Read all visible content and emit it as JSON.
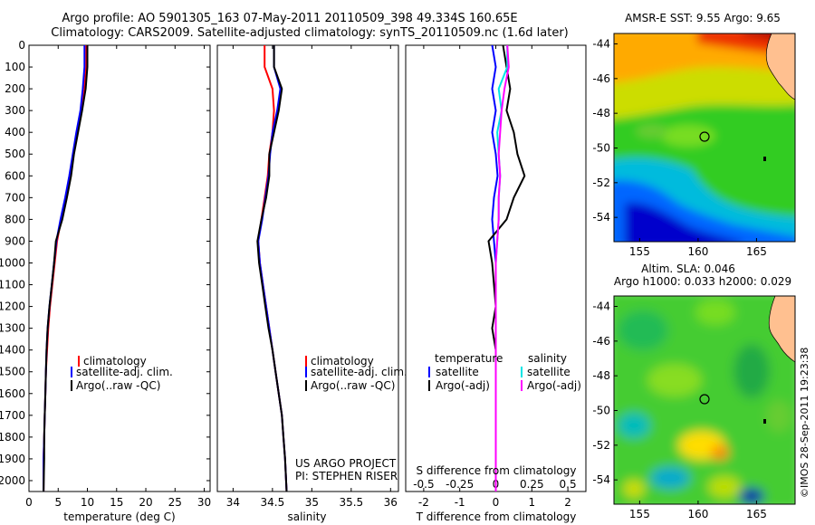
{
  "title_line1": "Argo profile: AO 5901305_163 07-May-2011 20110509_398 49.334S 160.65E",
  "title_line2": "Climatology: CARS2009. Satellite-adjusted climatology: synTS_20110509.nc (1.6d later)",
  "depth_ticks": [
    0,
    100,
    200,
    300,
    400,
    500,
    600,
    700,
    800,
    900,
    1000,
    1100,
    1200,
    1300,
    1400,
    1500,
    1600,
    1700,
    1800,
    1900,
    2000
  ],
  "panels": {
    "temperature": {
      "xlabel": "temperature (deg C)",
      "xticks": [
        0,
        5,
        10,
        15,
        20,
        25,
        30
      ],
      "legend": [
        "climatology",
        "satellite-adj. clim.",
        "Argo(..raw -QC)"
      ]
    },
    "salinity": {
      "xlabel": "salinity",
      "xticks": [
        "34",
        "34.5",
        "35",
        "35.5",
        "36"
      ],
      "legend": [
        "climatology",
        "satellite-adj. clim.",
        "Argo(..raw -QC)"
      ],
      "note1": "US ARGO PROJECT",
      "note2": "PI: STEPHEN RISER"
    },
    "difference": {
      "xlabel_bottom": "T difference from climatology",
      "xlabel_top": "S difference from climatology",
      "xticks_T": [
        "-2",
        "-1",
        "0",
        "1",
        "2"
      ],
      "xticks_S": [
        "-0.5",
        "-0.25",
        "0",
        "0.25",
        "0.5"
      ],
      "legend_t_title": "temperature",
      "legend_s_title": "salinity",
      "legend_t": [
        "satellite",
        "Argo(-adj)"
      ],
      "legend_s": [
        "satellite",
        "Argo(-adj)"
      ]
    }
  },
  "maps": {
    "sst_title": "AMSR-E SST: 9.55  Argo: 9.65",
    "sla_title1": "Altim. SLA: 0.046",
    "sla_title2": "Argo h1000: 0.033 h2000: 0.029",
    "lat_ticks": [
      "-44",
      "-46",
      "-48",
      "-50",
      "-52",
      "-54"
    ],
    "lon_ticks": [
      "155",
      "160",
      "165"
    ]
  },
  "watermark": "©IMOS 28-Sep-2011 19:23:38",
  "colors": {
    "climatology": "#ff0000",
    "satellite": "#0000ff",
    "argo": "#000000",
    "sat_s": "#00e5e5",
    "argo_s": "#ff00ff"
  },
  "chart_data": [
    {
      "type": "line",
      "xlabel": "temperature (deg C)",
      "ylabel": "",
      "xlim": [
        0,
        31
      ],
      "ylim": [
        2050,
        0
      ],
      "y_axis": "depth",
      "series": [
        {
          "name": "climatology",
          "x": [
            9.8,
            9.8,
            9.5,
            9.0,
            8.2,
            7.6,
            7.0,
            6.3,
            5.5,
            4.8,
            4.4,
            4.0,
            3.6,
            3.3,
            3.1,
            2.9,
            2.8,
            2.7,
            2.6,
            2.5,
            2.5
          ],
          "y": [
            0,
            100,
            200,
            300,
            400,
            500,
            600,
            700,
            800,
            900,
            1000,
            1100,
            1200,
            1300,
            1400,
            1500,
            1600,
            1700,
            1800,
            1900,
            2050
          ]
        },
        {
          "name": "satellite-adj. clim.",
          "x": [
            9.5,
            9.5,
            9.2,
            8.8,
            8.1,
            7.5,
            6.9,
            6.2,
            5.4,
            4.7,
            4.3,
            3.9,
            3.5,
            3.2,
            3.0,
            2.9,
            2.8,
            2.7,
            2.6,
            2.5,
            2.5
          ],
          "y": [
            0,
            100,
            200,
            300,
            400,
            500,
            600,
            700,
            800,
            900,
            1000,
            1100,
            1200,
            1300,
            1400,
            1500,
            1600,
            1700,
            1800,
            1900,
            2050
          ]
        },
        {
          "name": "Argo(..raw -QC)",
          "x": [
            10.0,
            10.0,
            9.7,
            9.1,
            8.4,
            7.7,
            7.2,
            6.5,
            5.7,
            4.6,
            4.3,
            3.9,
            3.5,
            3.2,
            3.0,
            2.9,
            2.8,
            2.7,
            2.6,
            2.6,
            2.5
          ],
          "y": [
            0,
            100,
            200,
            300,
            400,
            500,
            600,
            700,
            800,
            900,
            1000,
            1100,
            1200,
            1300,
            1400,
            1500,
            1600,
            1700,
            1800,
            1900,
            2050
          ]
        }
      ]
    },
    {
      "type": "line",
      "xlabel": "salinity",
      "ylabel": "",
      "xlim": [
        33.8,
        36.1
      ],
      "ylim": [
        2050,
        0
      ],
      "y_axis": "depth",
      "series": [
        {
          "name": "climatology",
          "x": [
            34.4,
            34.4,
            34.5,
            34.52,
            34.5,
            34.46,
            34.44,
            34.4,
            34.36,
            34.32,
            34.34,
            34.38,
            34.42,
            34.46,
            34.5,
            34.54,
            34.58,
            34.62,
            34.64,
            34.66,
            34.68
          ],
          "y": [
            0,
            100,
            200,
            300,
            400,
            500,
            600,
            700,
            800,
            900,
            1000,
            1100,
            1200,
            1300,
            1400,
            1500,
            1600,
            1700,
            1800,
            1900,
            2050
          ]
        },
        {
          "name": "satellite-adj. clim.",
          "x": [
            34.52,
            34.52,
            34.6,
            34.56,
            34.5,
            34.47,
            34.45,
            34.41,
            34.37,
            34.32,
            34.34,
            34.38,
            34.42,
            34.46,
            34.5,
            34.54,
            34.58,
            34.62,
            34.64,
            34.66,
            34.68
          ],
          "y": [
            0,
            100,
            200,
            300,
            400,
            500,
            600,
            700,
            800,
            900,
            1000,
            1100,
            1200,
            1300,
            1400,
            1500,
            1600,
            1700,
            1800,
            1900,
            2050
          ]
        },
        {
          "name": "Argo(..raw -QC)",
          "x": [
            34.52,
            34.52,
            34.62,
            34.58,
            34.52,
            34.46,
            34.46,
            34.42,
            34.36,
            34.31,
            34.33,
            34.37,
            34.41,
            34.45,
            34.5,
            34.54,
            34.58,
            34.62,
            34.64,
            34.66,
            34.68
          ],
          "y": [
            0,
            100,
            200,
            300,
            400,
            500,
            600,
            700,
            800,
            900,
            1000,
            1100,
            1200,
            1300,
            1400,
            1500,
            1600,
            1700,
            1800,
            1900,
            2050
          ]
        }
      ]
    },
    {
      "type": "line",
      "xlabel": "T difference from climatology",
      "ylabel": "",
      "xlim": [
        -2.5,
        2.5
      ],
      "ylim": [
        2050,
        0
      ],
      "y_axis": "depth",
      "series": [
        {
          "name": "satellite",
          "x": [
            -0.1,
            0.0,
            -0.1,
            0.0,
            -0.1,
            0.0,
            0.05,
            -0.05,
            -0.1,
            -0.05,
            0.0,
            0.0,
            0.0,
            0.0,
            0.0,
            0.0,
            0.0,
            0.0,
            0.0,
            0.0,
            0.0
          ],
          "y": [
            0,
            100,
            200,
            300,
            400,
            500,
            600,
            700,
            800,
            900,
            1000,
            1100,
            1200,
            1300,
            1400,
            1500,
            1600,
            1700,
            1800,
            1900,
            2050
          ]
        },
        {
          "name": "Argo(-adj)",
          "x": [
            0.2,
            0.3,
            0.4,
            0.3,
            0.5,
            0.6,
            0.8,
            0.5,
            0.3,
            -0.2,
            -0.1,
            -0.05,
            0.0,
            -0.1,
            0.0,
            0.0,
            0.0,
            0.0,
            0.0,
            0.0,
            0.0
          ],
          "y": [
            0,
            100,
            200,
            300,
            400,
            500,
            600,
            700,
            800,
            900,
            1000,
            1100,
            1200,
            1300,
            1400,
            1500,
            1600,
            1700,
            1800,
            1900,
            2050
          ]
        }
      ]
    },
    {
      "type": "line",
      "xlabel": "S difference from climatology",
      "ylabel": "",
      "xlim": [
        -0.625,
        0.625
      ],
      "ylim": [
        2050,
        0
      ],
      "y_axis": "depth",
      "series": [
        {
          "name": "satellite",
          "x": [
            0.08,
            0.08,
            0.02,
            0.04,
            0.01,
            0.02,
            0.03,
            0.02,
            0.02,
            0.01,
            0.0,
            0.0,
            0.0,
            0.0,
            0.0,
            0.0,
            0.0,
            0.0,
            0.0,
            0.0,
            0.0
          ],
          "y": [
            0,
            100,
            200,
            300,
            400,
            500,
            600,
            700,
            800,
            900,
            1000,
            1100,
            1200,
            1300,
            1400,
            1500,
            1600,
            1700,
            1800,
            1900,
            2050
          ]
        },
        {
          "name": "Argo(-adj)",
          "x": [
            0.08,
            0.09,
            0.06,
            0.04,
            0.03,
            0.02,
            0.03,
            0.02,
            0.02,
            0.01,
            0.0,
            0.0,
            0.0,
            0.0,
            0.0,
            0.0,
            0.0,
            0.0,
            0.0,
            0.0,
            0.0
          ],
          "y": [
            0,
            100,
            200,
            300,
            400,
            500,
            600,
            700,
            800,
            900,
            1000,
            1100,
            1200,
            1300,
            1400,
            1500,
            1600,
            1700,
            1800,
            1900,
            2050
          ]
        }
      ]
    },
    {
      "type": "heatmap",
      "title": "AMSR-E SST: 9.55  Argo: 9.65",
      "xlim": [
        152.8,
        168.3
      ],
      "ylim": [
        -55.4,
        -43.4
      ],
      "marker": {
        "lon": 160.65,
        "lat": -49.334
      }
    },
    {
      "type": "heatmap",
      "title": "Altim. SLA: 0.046 / Argo h1000: 0.033 h2000: 0.029",
      "xlim": [
        152.8,
        168.3
      ],
      "ylim": [
        -55.4,
        -43.4
      ],
      "marker": {
        "lon": 160.65,
        "lat": -49.334
      }
    }
  ]
}
